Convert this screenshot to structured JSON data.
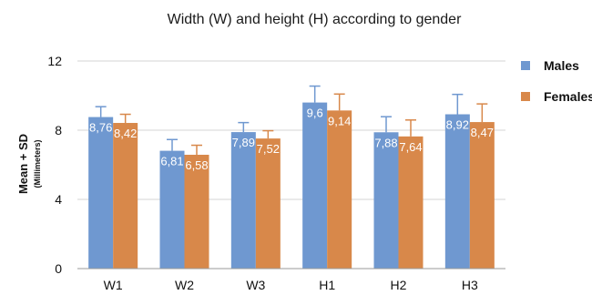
{
  "chart_data": {
    "type": "bar",
    "title": "Width (W) and height (H) according to gender",
    "ylabel": "Mean + SD",
    "ylabel_sub": "(Millimeters)",
    "xlabel": "",
    "categories": [
      "W1",
      "W2",
      "W3",
      "H1",
      "H2",
      "H3"
    ],
    "ylim": [
      0,
      12
    ],
    "yticks": [
      "0",
      "4",
      "8",
      "12"
    ],
    "grid": true,
    "legend_position": "right",
    "series": [
      {
        "name": "Males",
        "color": "#6f98d0",
        "values": [
          8.76,
          6.81,
          7.89,
          9.6,
          7.88,
          8.92
        ],
        "labels": [
          "8,76",
          "6,81",
          "7,89",
          "9,6",
          "7,88",
          "8,92"
        ],
        "sd": [
          0.6,
          0.65,
          0.55,
          0.95,
          0.9,
          1.15
        ]
      },
      {
        "name": "Females",
        "color": "#d8884a",
        "values": [
          8.42,
          6.58,
          7.52,
          9.14,
          7.64,
          8.47
        ],
        "labels": [
          "8,42",
          "6,58",
          "7,52",
          "9,14",
          "7,64",
          "8,47"
        ],
        "sd": [
          0.5,
          0.55,
          0.45,
          0.95,
          0.95,
          1.05
        ]
      }
    ]
  }
}
